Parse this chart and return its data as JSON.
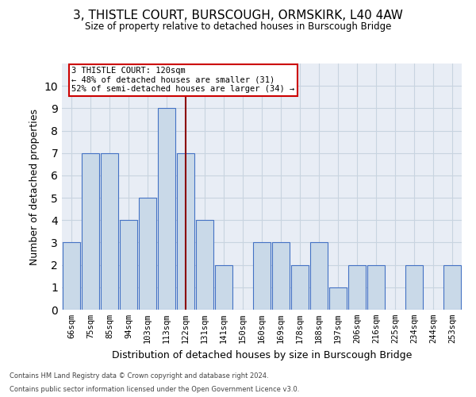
{
  "title1": "3, THISTLE COURT, BURSCOUGH, ORMSKIRK, L40 4AW",
  "title2": "Size of property relative to detached houses in Burscough Bridge",
  "xlabel": "Distribution of detached houses by size in Burscough Bridge",
  "ylabel": "Number of detached properties",
  "categories": [
    "66sqm",
    "75sqm",
    "85sqm",
    "94sqm",
    "103sqm",
    "113sqm",
    "122sqm",
    "131sqm",
    "141sqm",
    "150sqm",
    "160sqm",
    "169sqm",
    "178sqm",
    "188sqm",
    "197sqm",
    "206sqm",
    "216sqm",
    "225sqm",
    "234sqm",
    "244sqm",
    "253sqm"
  ],
  "values": [
    3,
    7,
    7,
    4,
    5,
    9,
    7,
    4,
    2,
    0,
    3,
    3,
    2,
    3,
    1,
    2,
    2,
    0,
    2,
    0,
    2
  ],
  "bar_color": "#c9d9e8",
  "bar_edge_color": "#4472c4",
  "vline_x": 6,
  "vline_color": "#8b0000",
  "annotation_text": "3 THISTLE COURT: 120sqm\n← 48% of detached houses are smaller (31)\n52% of semi-detached houses are larger (34) →",
  "annotation_box_color": "#ffffff",
  "annotation_box_edge": "#cc0000",
  "ylim": [
    0,
    11
  ],
  "yticks": [
    0,
    1,
    2,
    3,
    4,
    5,
    6,
    7,
    8,
    9,
    10,
    11
  ],
  "grid_color": "#c8d4e0",
  "bg_color": "#e8edf5",
  "footer1": "Contains HM Land Registry data © Crown copyright and database right 2024.",
  "footer2": "Contains public sector information licensed under the Open Government Licence v3.0."
}
